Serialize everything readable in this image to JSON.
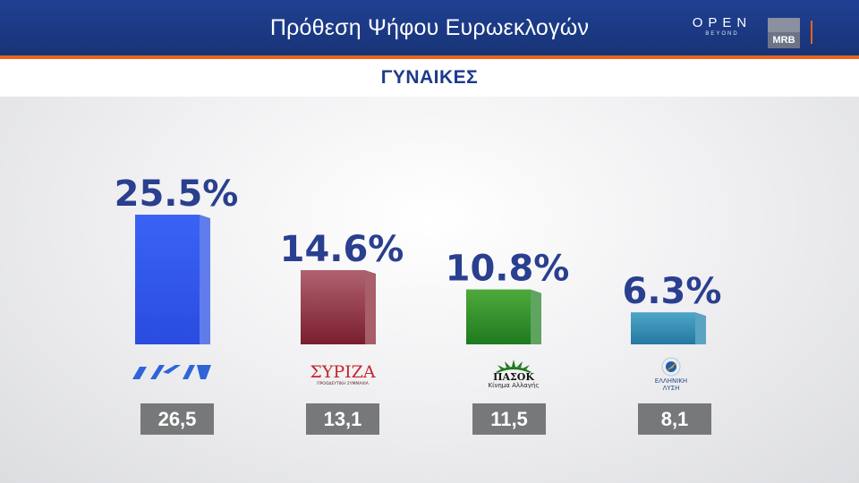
{
  "header": {
    "title": "Πρόθεση Ψήφου Ευρωεκλογών",
    "brand_open": "OPEN",
    "brand_open_sub": "BEYOND",
    "brand_mrb": "MRB"
  },
  "subtitle": "ΓΥΝΑΙΚΕΣ",
  "parties": [
    {
      "logo_text": "ΝΔ",
      "logo_icon": "nd-logo-icon",
      "color": "#2f55e8"
    },
    {
      "logo_text": "ΣΥΡΙΖΑ",
      "logo_sub": "ΠΡΟΟΔΕΥΤΙΚΗ ΣΥΜΜΑΧΙΑ",
      "logo_icon": "syriza-logo-icon",
      "color": "#8e2c3a"
    },
    {
      "logo_text": "ΠΑΣΟΚ",
      "logo_sub": "Κίνημα Αλλαγής",
      "logo_icon": "pasok-logo-icon",
      "color": "#2c8a2c"
    },
    {
      "logo_text": "ΕΛΛΗΝΙΚΗ ΛΥΣΗ",
      "logo_icon": "elliniki-lysi-logo-icon",
      "color": "#2a8ab4"
    }
  ],
  "chart_data": {
    "type": "bar",
    "title": "Πρόθεση Ψήφου Ευρωεκλογών",
    "subtitle": "ΓΥΝΑΙΚΕΣ",
    "categories": [
      "ΝΔ",
      "ΣΥΡΙΖΑ",
      "ΠΑΣΟΚ",
      "ΕΛΛΗΝΙΚΗ ΛΥΣΗ"
    ],
    "series": [
      {
        "values": [
          25.5,
          14.6,
          10.8,
          6.3
        ],
        "labels": [
          "25.5%",
          "14.6%",
          "10.8%",
          "6.3%"
        ]
      },
      {
        "values": [
          26.5,
          13.1,
          11.5,
          8.1
        ],
        "labels": [
          "26,5",
          "13,1",
          "11,5",
          "8,1"
        ]
      }
    ],
    "ylim": [
      0,
      25.5
    ],
    "grid": false,
    "bar_colors": [
      "#2f55e8",
      "#8e2c3a",
      "#2c8a2c",
      "#2a8ab4"
    ]
  }
}
